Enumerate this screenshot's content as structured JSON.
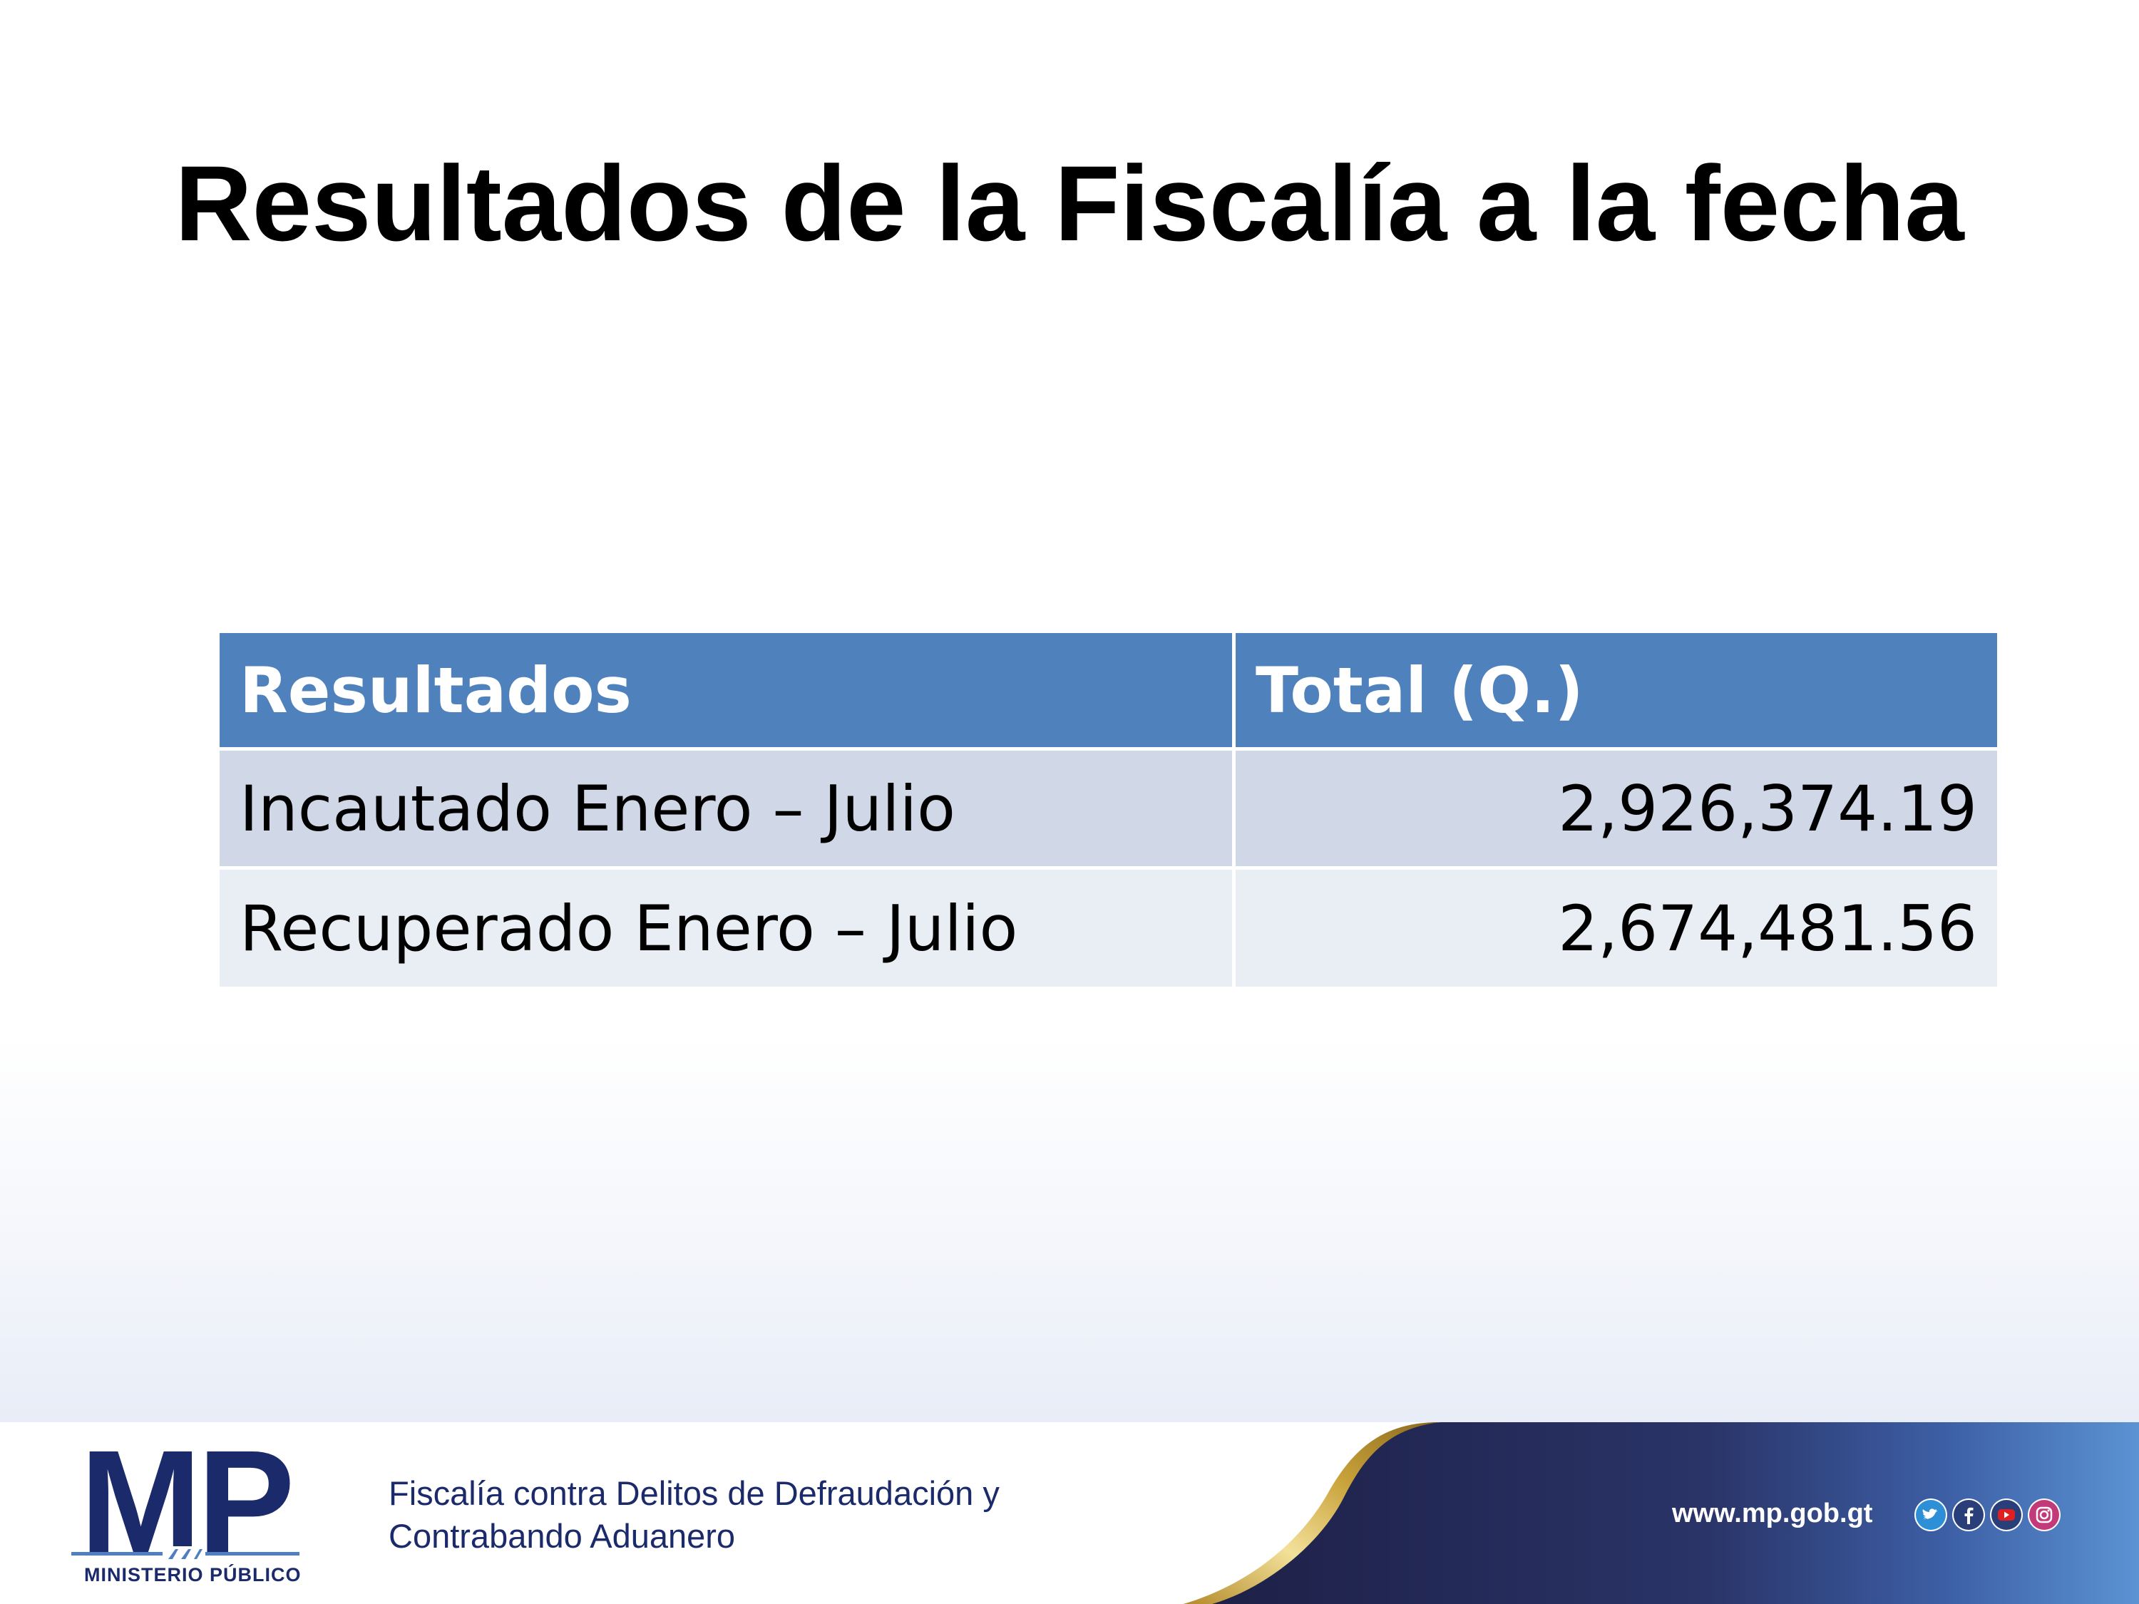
{
  "slide": {
    "title": "Resultados de la Fiscalía a la fecha"
  },
  "table": {
    "headers": [
      "Resultados",
      "Total (Q.)"
    ],
    "rows": [
      [
        "Incautado Enero – Julio",
        "2,926,374.19"
      ],
      [
        "Recuperado Enero – Julio",
        "2,674,481.56"
      ]
    ]
  },
  "footer": {
    "logo_text": "MP",
    "logo_subtitle": "MINISTERIO PÚBLICO",
    "office_line1": "Fiscalía contra Delitos de Defraudación y",
    "office_line2": "Contrabando Aduanero",
    "website": "www.mp.gob.gt",
    "social_icons": [
      "twitter-icon",
      "facebook-icon",
      "youtube-icon",
      "instagram-icon"
    ]
  },
  "colors": {
    "header_blue": "#4f81bd",
    "row_odd": "#d0d8e8",
    "row_even": "#e9edf4",
    "navy": "#1b2a6b",
    "gold": "#c9a23a"
  }
}
